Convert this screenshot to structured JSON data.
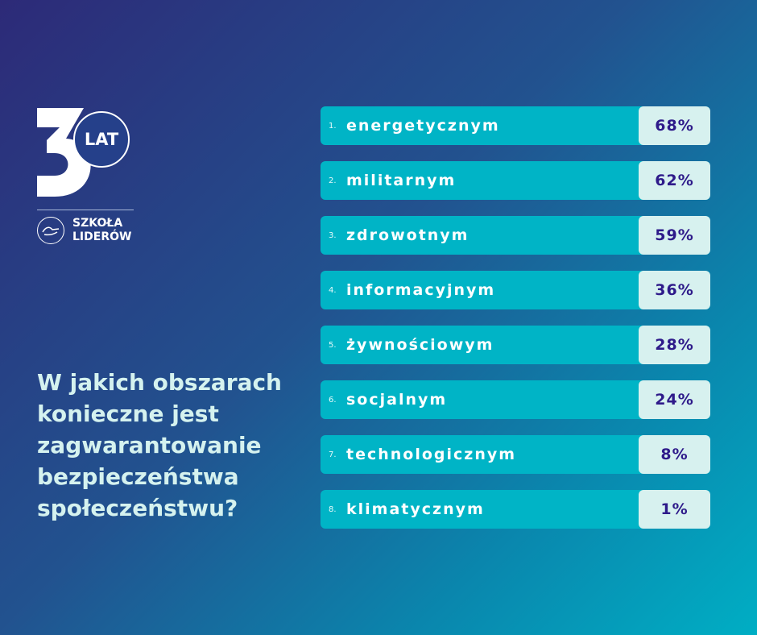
{
  "logo": {
    "badge": "LAT",
    "number": "3",
    "line1": "SZKOŁA",
    "line2": "LIDERÓW"
  },
  "question": "W jakich obszarach konieczne jest zagwarantowanie bezpieczeństwa społeczeństwu?",
  "chart_data": {
    "type": "bar",
    "title": "W jakich obszarach konieczne jest zagwarantowanie bezpieczeństwa społeczeństwu?",
    "categories": [
      "energetycznym",
      "militarnym",
      "zdrowotnym",
      "informacyjnym",
      "żywnościowym",
      "socjalnym",
      "technologicznym",
      "klimatycznym"
    ],
    "ranks": [
      "1.",
      "2.",
      "3.",
      "4.",
      "5.",
      "6.",
      "7.",
      "8."
    ],
    "values": [
      68,
      62,
      59,
      36,
      28,
      24,
      8,
      1
    ],
    "labels": [
      "68%",
      "62%",
      "59%",
      "36%",
      "28%",
      "24%",
      "8%",
      "1%"
    ],
    "unit": "%"
  }
}
